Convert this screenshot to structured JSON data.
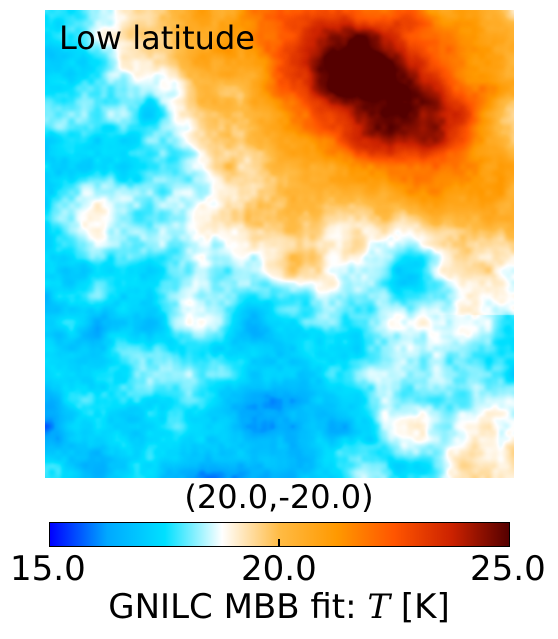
{
  "map": {
    "region_label": "Low latitude",
    "coordinates": "(20.0,-20.0)"
  },
  "colorbar": {
    "ticks": [
      "15.0",
      "20.0",
      "25.0"
    ],
    "range": [
      15.0,
      25.0
    ],
    "label_prefix": "GNILC MBB fit: ",
    "label_var": "T",
    "label_unit": " [K]",
    "colormap_stops": [
      "#0000ff",
      "#00a8ff",
      "#00e0ff",
      "#ffffff",
      "#ffbb44",
      "#ff9900",
      "#ff5500",
      "#cc2200",
      "#550000"
    ]
  }
}
